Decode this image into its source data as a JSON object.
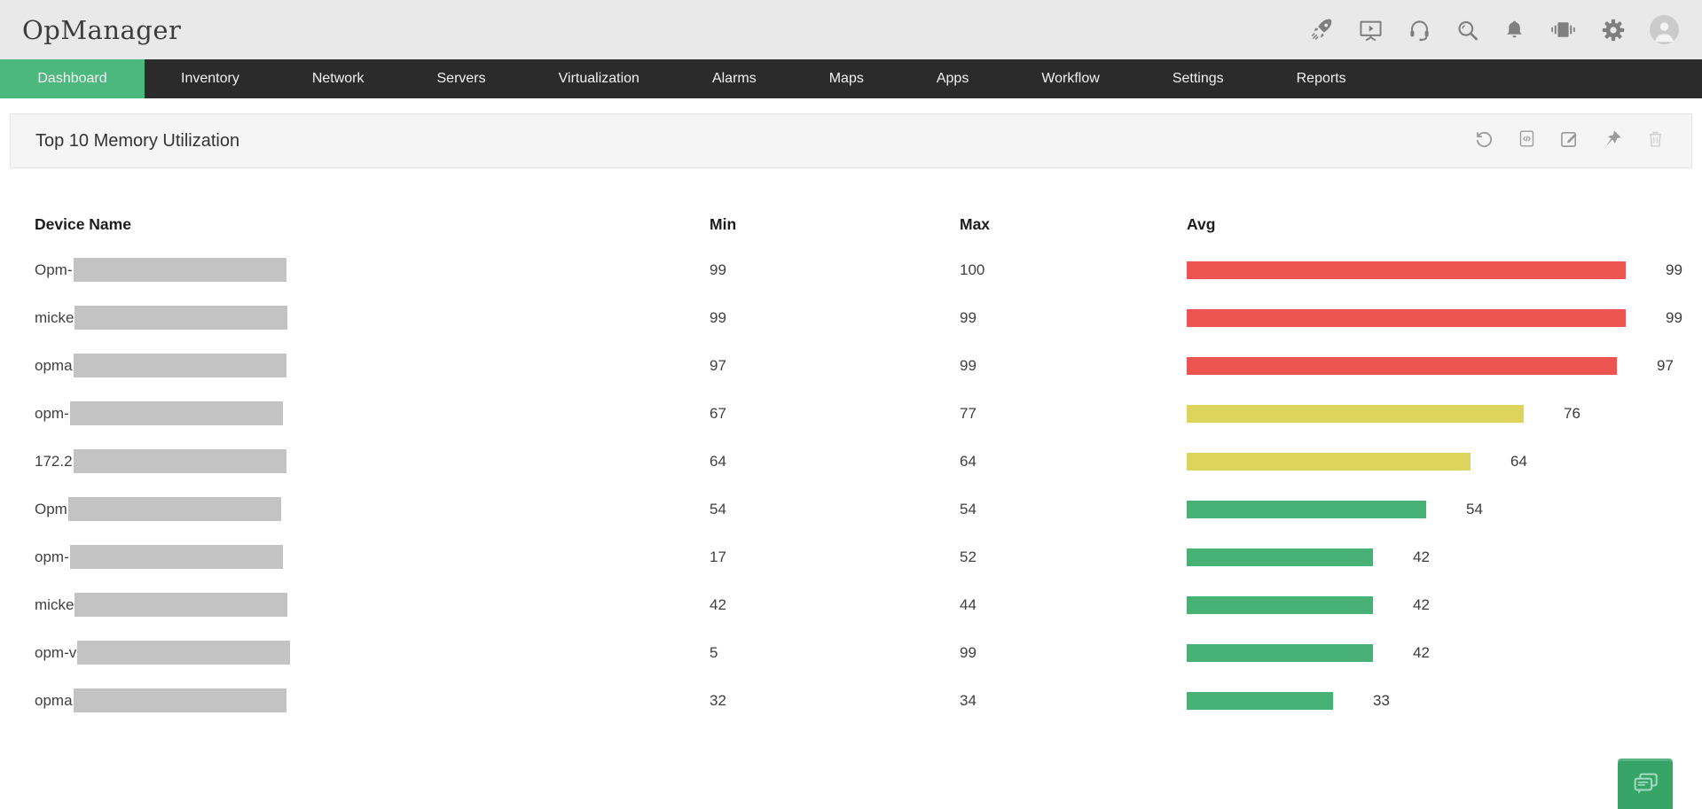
{
  "app_title": "OpManager",
  "topbar": {
    "icons": [
      "rocket",
      "presentation",
      "headset",
      "search",
      "notifications",
      "video-wall",
      "settings-gear",
      "user-avatar"
    ]
  },
  "nav": {
    "items": [
      {
        "label": "Dashboard",
        "active": true
      },
      {
        "label": "Inventory",
        "active": false
      },
      {
        "label": "Network",
        "active": false
      },
      {
        "label": "Servers",
        "active": false
      },
      {
        "label": "Virtualization",
        "active": false
      },
      {
        "label": "Alarms",
        "active": false
      },
      {
        "label": "Maps",
        "active": false
      },
      {
        "label": "Apps",
        "active": false
      },
      {
        "label": "Workflow",
        "active": false
      },
      {
        "label": "Settings",
        "active": false
      },
      {
        "label": "Reports",
        "active": false
      }
    ]
  },
  "panel": {
    "title": "Top 10 Memory Utilization",
    "actions": [
      "refresh",
      "embed-widget",
      "edit",
      "pin",
      "delete"
    ]
  },
  "chart_data": {
    "type": "bar",
    "orientation": "horizontal",
    "title": "Top 10 Memory Utilization",
    "unit": "%",
    "xlim": [
      0,
      100
    ],
    "columns": [
      "Device Name",
      "Min",
      "Max",
      "Avg"
    ],
    "rows": [
      {
        "device_prefix": "Opm-",
        "device_redacted": true,
        "min": 99,
        "max": 100,
        "avg": 99,
        "severity": "critical"
      },
      {
        "device_prefix": "micke",
        "device_redacted": true,
        "min": 99,
        "max": 99,
        "avg": 99,
        "severity": "critical"
      },
      {
        "device_prefix": "opma",
        "device_redacted": true,
        "min": 97,
        "max": 99,
        "avg": 97,
        "severity": "critical"
      },
      {
        "device_prefix": "opm-",
        "device_redacted": true,
        "min": 67,
        "max": 77,
        "avg": 76,
        "severity": "warning"
      },
      {
        "device_prefix": "172.2",
        "device_redacted": true,
        "min": 64,
        "max": 64,
        "avg": 64,
        "severity": "warning"
      },
      {
        "device_prefix": "Opm",
        "device_redacted": true,
        "min": 54,
        "max": 54,
        "avg": 54,
        "severity": "ok"
      },
      {
        "device_prefix": "opm-",
        "device_redacted": true,
        "min": 17,
        "max": 52,
        "avg": 42,
        "severity": "ok"
      },
      {
        "device_prefix": "micke",
        "device_redacted": true,
        "min": 42,
        "max": 44,
        "avg": 42,
        "severity": "ok"
      },
      {
        "device_prefix": "opm-v",
        "device_redacted": true,
        "min": 5,
        "max": 99,
        "avg": 42,
        "severity": "ok"
      },
      {
        "device_prefix": "opma",
        "device_redacted": true,
        "min": 32,
        "max": 34,
        "avg": 33,
        "severity": "ok"
      }
    ],
    "severity_colors": {
      "critical": "#ec5452",
      "warning": "#ddd45e",
      "ok": "#47b176"
    }
  },
  "colors": {
    "topbar_bg": "#e9e9e9",
    "nav_bg": "#2b2b2b",
    "active_tab": "#4db87e",
    "panel_header_bg": "#f5f5f5",
    "redaction": "#c3c3c3",
    "chat_button": "#36a367"
  }
}
